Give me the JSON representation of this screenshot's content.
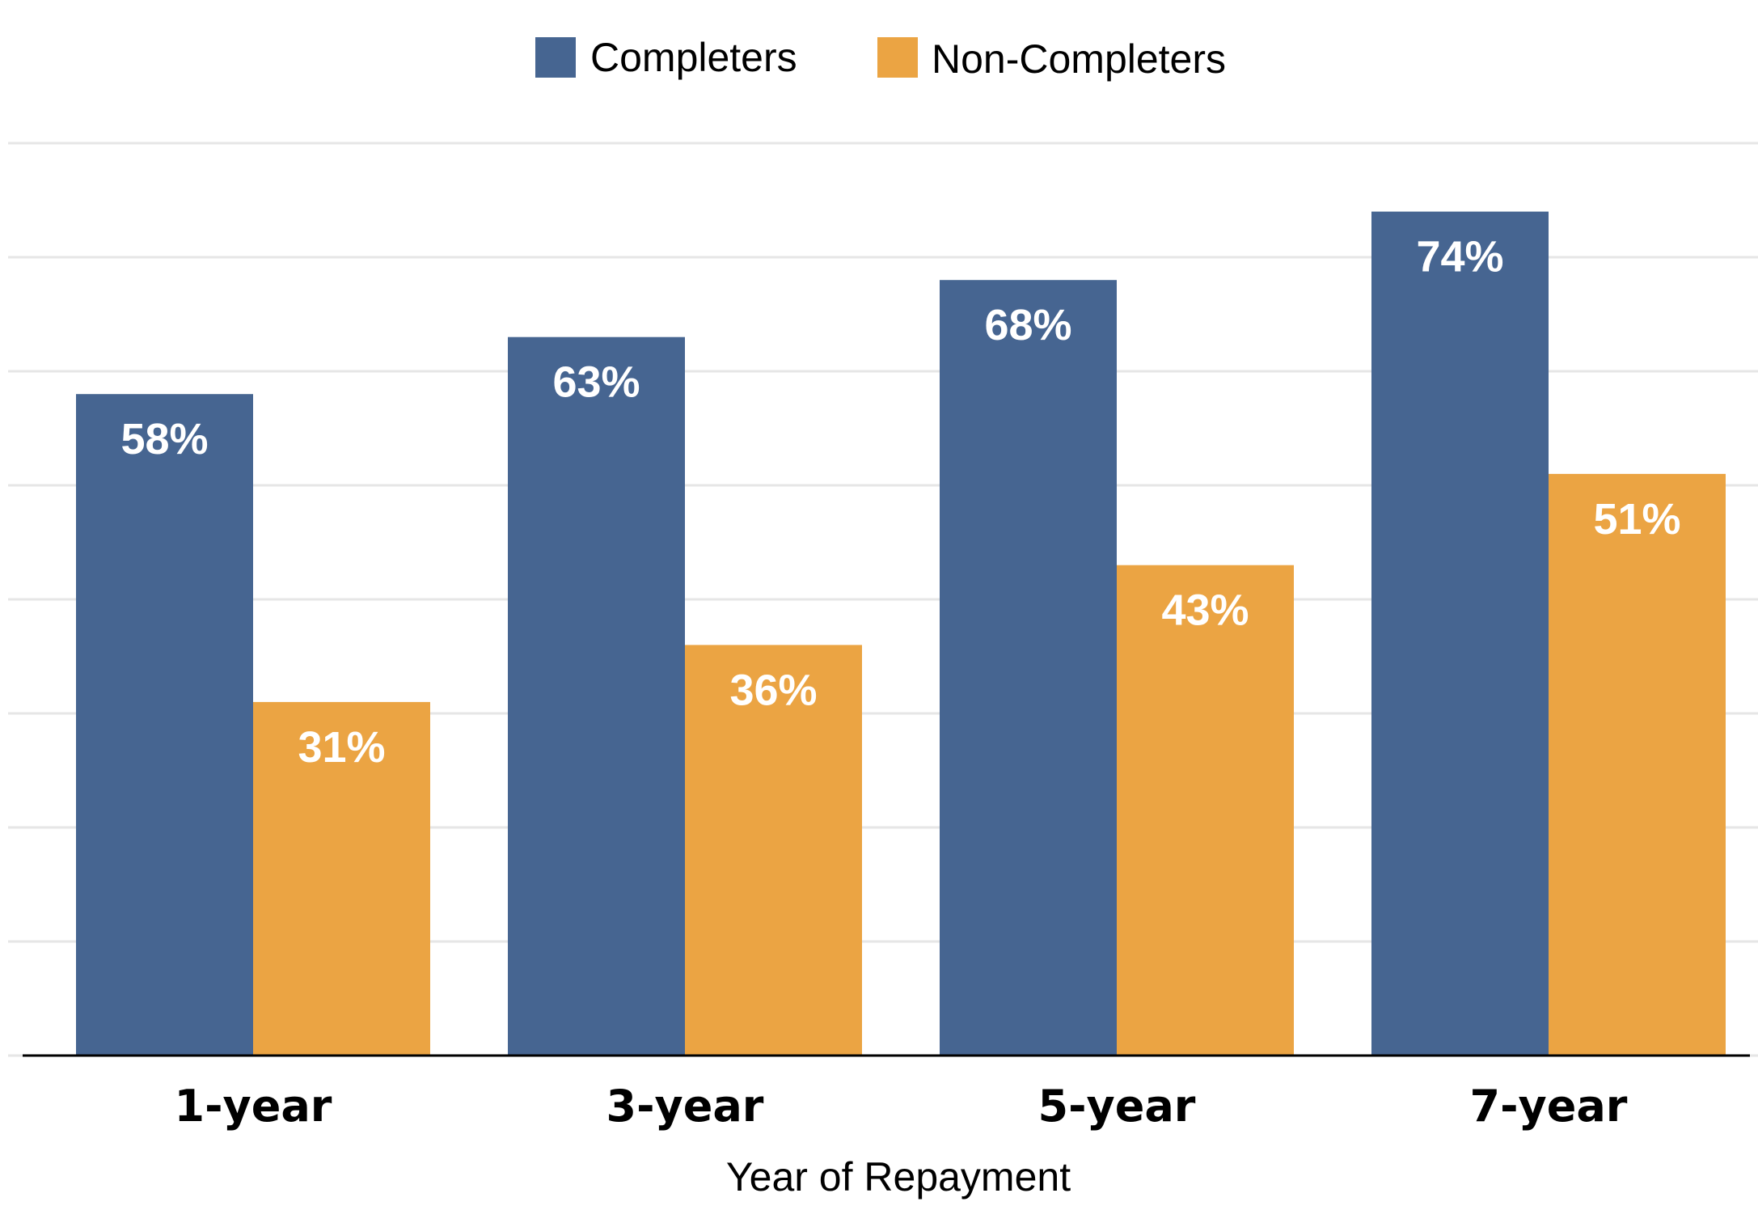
{
  "chart_data": {
    "type": "bar",
    "title": "",
    "xlabel": "Year of Repayment",
    "ylabel": "",
    "categories": [
      "1-year",
      "3-year",
      "5-year",
      "7-year"
    ],
    "series": [
      {
        "name": "Completers",
        "values": [
          58,
          63,
          68,
          74
        ],
        "labels": [
          "58%",
          "63%",
          "68%",
          "74%"
        ],
        "color": "#466591"
      },
      {
        "name": "Non-Completers",
        "values": [
          31,
          36,
          43,
          51
        ],
        "labels": [
          "31%",
          "36%",
          "43%",
          "51%"
        ],
        "color": "#EBA443"
      }
    ],
    "ylim": [
      0,
      80
    ],
    "grid": true,
    "legend_position": "top-center",
    "colors": {
      "gridline": "#E6E6E6",
      "axis": "#000000",
      "label_text": "#FFFFFF"
    }
  }
}
